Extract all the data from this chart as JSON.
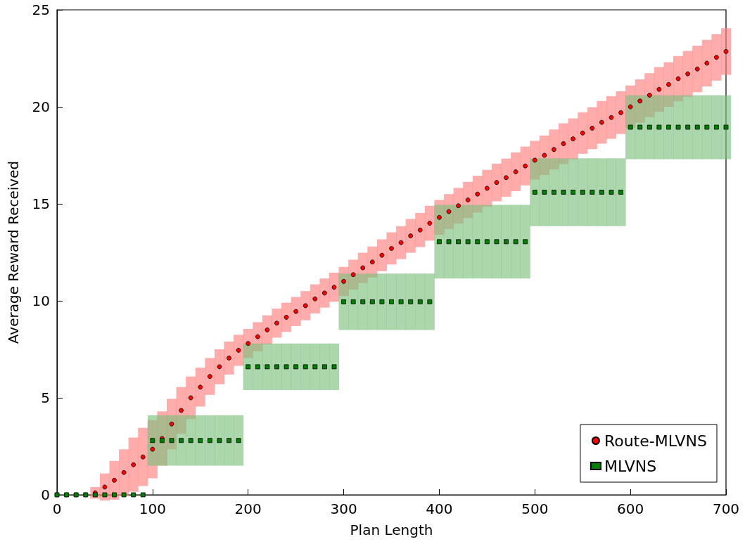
{
  "chart_data": {
    "type": "scatter",
    "xlabel": "Plan Length",
    "ylabel": "Average Reward Received",
    "xlim": [
      0,
      700
    ],
    "xticks": [
      0,
      100,
      200,
      300,
      400,
      500,
      600,
      700
    ],
    "ylim": [
      0,
      25
    ],
    "yticks": [
      0,
      5,
      10,
      15,
      20,
      25
    ],
    "grid": false,
    "legend": "bottom right",
    "x": [
      0,
      10,
      20,
      30,
      40,
      50,
      60,
      70,
      80,
      90,
      100,
      110,
      120,
      130,
      140,
      150,
      160,
      170,
      180,
      190,
      200,
      210,
      220,
      230,
      240,
      250,
      260,
      270,
      280,
      290,
      300,
      310,
      320,
      330,
      340,
      350,
      360,
      370,
      380,
      390,
      400,
      410,
      420,
      430,
      440,
      450,
      460,
      470,
      480,
      490,
      500,
      510,
      520,
      530,
      540,
      550,
      560,
      570,
      580,
      590,
      600,
      610,
      620,
      630,
      640,
      650,
      660,
      670,
      680,
      690,
      700
    ],
    "series": [
      {
        "name": "Route-MLVNS",
        "color": "#ff0000",
        "marker": "circle",
        "values": [
          0,
          0,
          0,
          0,
          0.1,
          0.4,
          0.75,
          1.15,
          1.55,
          1.95,
          2.35,
          2.9,
          3.65,
          4.35,
          5.0,
          5.55,
          6.1,
          6.6,
          7.05,
          7.45,
          7.8,
          8.15,
          8.5,
          8.85,
          9.15,
          9.45,
          9.75,
          10.1,
          10.4,
          10.7,
          11.0,
          11.35,
          11.7,
          12.0,
          12.35,
          12.7,
          13.0,
          13.35,
          13.65,
          14.0,
          14.3,
          14.6,
          14.9,
          15.2,
          15.5,
          15.8,
          16.1,
          16.35,
          16.65,
          16.95,
          17.25,
          17.5,
          17.8,
          18.1,
          18.35,
          18.65,
          18.9,
          19.2,
          19.45,
          19.7,
          20.0,
          20.3,
          20.6,
          20.9,
          21.15,
          21.45,
          21.7,
          21.95,
          22.25,
          22.55,
          22.85
        ],
        "errors": [
          0,
          0,
          0,
          0,
          0.3,
          0.7,
          1.0,
          1.2,
          1.4,
          1.5,
          1.5,
          1.4,
          1.3,
          1.2,
          1.1,
          1.0,
          0.95,
          0.9,
          0.85,
          0.8,
          0.75,
          0.75,
          0.75,
          0.75,
          0.75,
          0.75,
          0.75,
          0.75,
          0.75,
          0.75,
          0.75,
          0.77,
          0.78,
          0.8,
          0.82,
          0.83,
          0.85,
          0.87,
          0.88,
          0.9,
          0.9,
          0.9,
          0.92,
          0.93,
          0.95,
          0.95,
          0.97,
          0.98,
          1.0,
          1.0,
          1.0,
          1.02,
          1.03,
          1.05,
          1.05,
          1.07,
          1.08,
          1.1,
          1.1,
          1.1,
          1.1,
          1.12,
          1.13,
          1.15,
          1.15,
          1.17,
          1.18,
          1.2,
          1.2,
          1.2,
          1.2
        ]
      },
      {
        "name": "MLVNS",
        "color": "#008000",
        "marker": "square",
        "values": [
          0,
          0,
          0,
          0,
          0,
          0,
          0,
          0,
          0,
          0,
          2.8,
          2.8,
          2.8,
          2.8,
          2.8,
          2.8,
          2.8,
          2.8,
          2.8,
          2.8,
          6.6,
          6.6,
          6.6,
          6.6,
          6.6,
          6.6,
          6.6,
          6.6,
          6.6,
          6.6,
          9.95,
          9.95,
          9.95,
          9.95,
          9.95,
          9.95,
          9.95,
          9.95,
          9.95,
          9.95,
          13.05,
          13.05,
          13.05,
          13.05,
          13.05,
          13.05,
          13.05,
          13.05,
          13.05,
          13.05,
          15.6,
          15.6,
          15.6,
          15.6,
          15.6,
          15.6,
          15.6,
          15.6,
          15.6,
          15.6,
          18.95,
          18.95,
          18.95,
          18.95,
          18.95,
          18.95,
          18.95,
          18.95,
          18.95,
          18.95,
          18.95
        ],
        "errors": [
          0,
          0,
          0,
          0,
          0,
          0,
          0,
          0,
          0,
          0,
          1.3,
          1.3,
          1.3,
          1.3,
          1.3,
          1.3,
          1.3,
          1.3,
          1.3,
          1.3,
          1.2,
          1.2,
          1.2,
          1.2,
          1.2,
          1.2,
          1.2,
          1.2,
          1.2,
          1.2,
          1.45,
          1.45,
          1.45,
          1.45,
          1.45,
          1.45,
          1.45,
          1.45,
          1.45,
          1.45,
          1.9,
          1.9,
          1.9,
          1.9,
          1.9,
          1.9,
          1.9,
          1.9,
          1.9,
          1.9,
          1.75,
          1.75,
          1.75,
          1.75,
          1.75,
          1.75,
          1.75,
          1.75,
          1.75,
          1.75,
          1.65,
          1.65,
          1.65,
          1.65,
          1.65,
          1.65,
          1.65,
          1.65,
          1.65,
          1.65,
          1.65
        ]
      }
    ]
  }
}
